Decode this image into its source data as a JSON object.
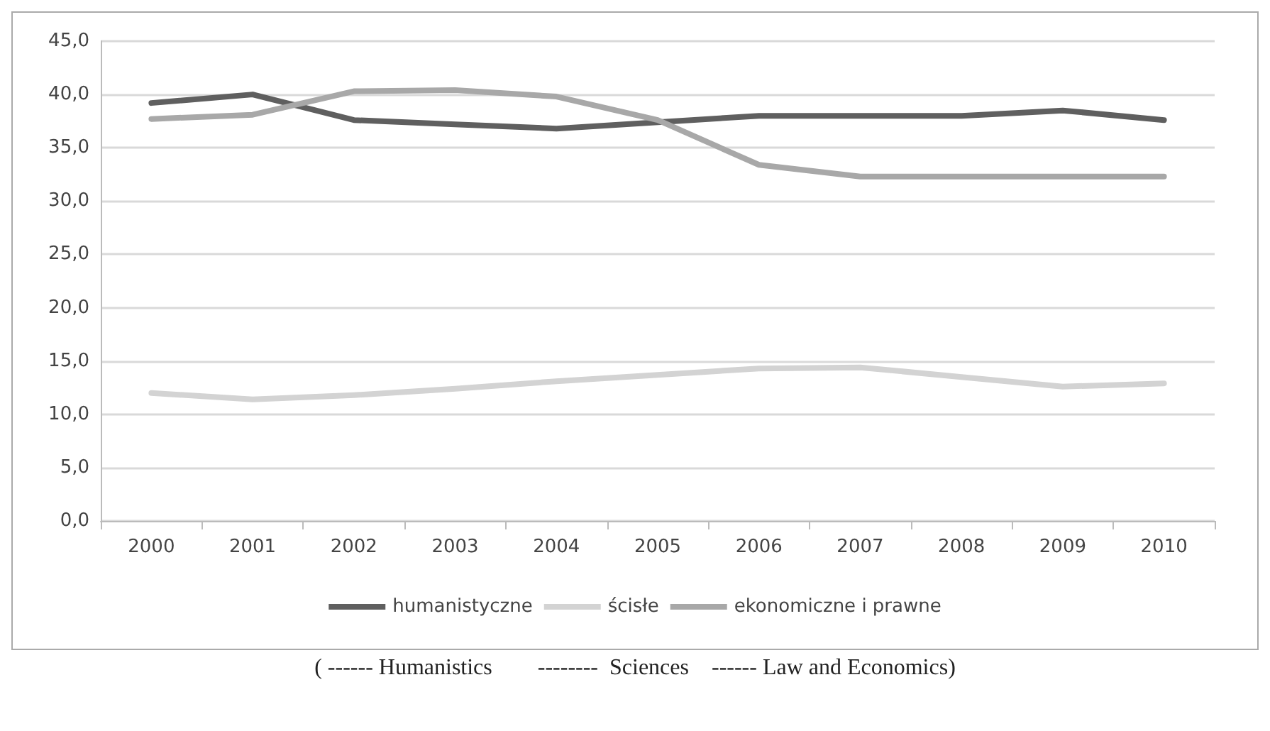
{
  "chart_data": {
    "type": "line",
    "categories": [
      "2000",
      "2001",
      "2002",
      "2003",
      "2004",
      "2005",
      "2006",
      "2007",
      "2008",
      "2009",
      "2010"
    ],
    "series": [
      {
        "name": "humanistyczne",
        "color": "#5f5f5f",
        "values": [
          39.2,
          40.0,
          37.6,
          37.2,
          36.8,
          37.4,
          38.0,
          38.0,
          38.0,
          38.5,
          37.6
        ]
      },
      {
        "name": "ścisłe",
        "color": "#d3d3d3",
        "values": [
          12.0,
          11.4,
          11.8,
          12.4,
          13.1,
          13.7,
          14.3,
          14.4,
          13.5,
          12.6,
          12.9
        ]
      },
      {
        "name": "ekonomiczne i prawne",
        "color": "#a8a8a8",
        "values": [
          37.7,
          38.1,
          40.3,
          40.4,
          39.8,
          37.6,
          33.4,
          32.3,
          32.3,
          32.3,
          32.3
        ]
      }
    ],
    "ylim": [
      0,
      45
    ],
    "yticks": [
      {
        "value": 0,
        "label": "0,0"
      },
      {
        "value": 5,
        "label": "5,0"
      },
      {
        "value": 10,
        "label": "10,0"
      },
      {
        "value": 15,
        "label": "15,0"
      },
      {
        "value": 20,
        "label": "20,0"
      },
      {
        "value": 25,
        "label": "25,0"
      },
      {
        "value": 30,
        "label": "30,0"
      },
      {
        "value": 35,
        "label": "35,0"
      },
      {
        "value": 40,
        "label": "40,0"
      },
      {
        "value": 45,
        "label": "45,0"
      }
    ],
    "grid": "y",
    "legend": "bottom",
    "marker": "none",
    "line_style": "solid",
    "annotations": [
      "( ------ Humanistics        --------  Sciences    ------ Law and Economics)"
    ]
  }
}
